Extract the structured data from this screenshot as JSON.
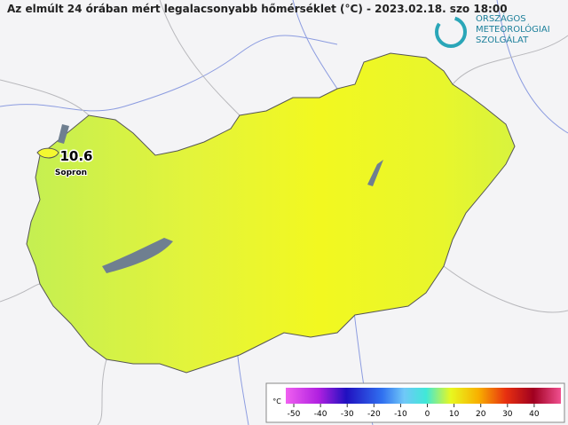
{
  "header": {
    "title": "Az elmúlt 24 órában mért legalacsonyabb hőmérséklet (°C) - 2023.02.18. szo 18:00"
  },
  "logo": {
    "lines": [
      "ORSZÁGOS",
      "METEOROLÓGIAI",
      "SZOLGÁLAT"
    ]
  },
  "stations": [
    {
      "name": "Sopron",
      "value": 10.6
    }
  ],
  "colorbar": {
    "unit": "°C",
    "lim": [
      -53,
      50
    ],
    "ticks": [
      -50,
      -40,
      -30,
      -20,
      -10,
      0,
      10,
      20,
      30,
      40
    ]
  }
}
